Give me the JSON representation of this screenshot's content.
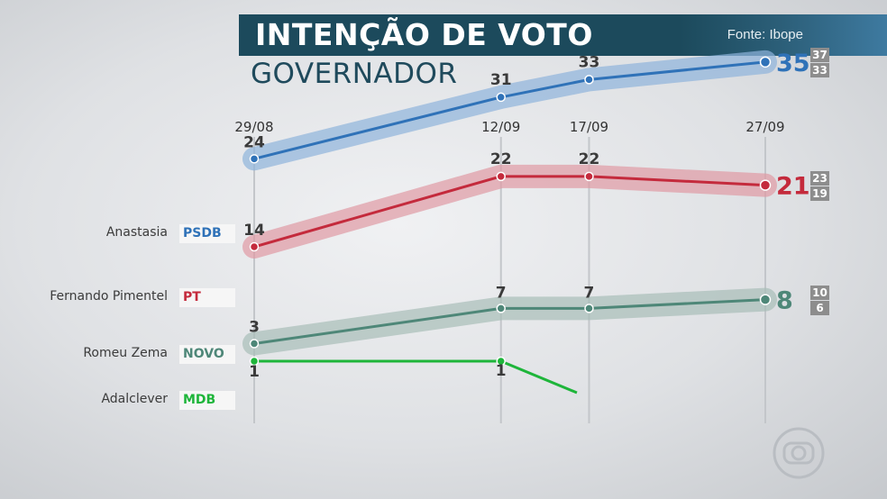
{
  "header": {
    "title": "INTENÇÃO DE VOTO",
    "source": "Fonte: Ibope"
  },
  "subtitle": "GOVERNADOR",
  "chart_data": {
    "type": "line",
    "title": "INTENÇÃO DE VOTO",
    "subtitle": "GOVERNADOR",
    "categories": [
      "29/08",
      "12/09",
      "17/09",
      "27/09"
    ],
    "series": [
      {
        "name": "Anastasia",
        "party": "PSDB",
        "color": "#2f72b8",
        "values": [
          24,
          31,
          33,
          35
        ],
        "range": [
          "37",
          "33"
        ]
      },
      {
        "name": "Fernando Pimentel",
        "party": "PT",
        "color": "#c42a3c",
        "values": [
          14,
          22,
          22,
          21
        ],
        "range": [
          "23",
          "19"
        ]
      },
      {
        "name": "Romeu Zema",
        "party": "NOVO",
        "color": "#4e8778",
        "values": [
          3,
          7,
          7,
          8
        ],
        "range": [
          "10",
          "6"
        ]
      },
      {
        "name": "Adalclever",
        "party": "MDB",
        "color": "#1eb53a",
        "values": [
          1,
          1,
          null,
          null
        ],
        "range": null
      }
    ],
    "legend": "left"
  },
  "logo": {
    "name": "globo-logo"
  }
}
